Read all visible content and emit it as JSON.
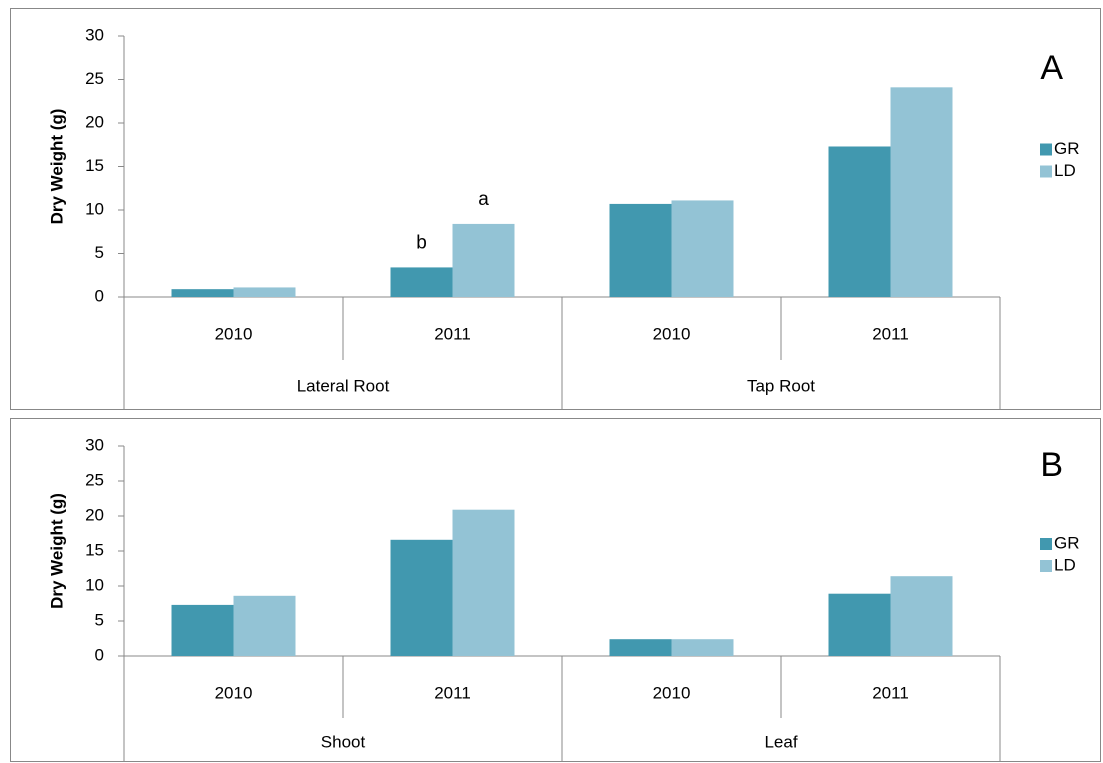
{
  "chart_data": [
    {
      "type": "bar",
      "panel_label": "A",
      "y_label": "Dry Weight (g)",
      "categories": [
        "2010",
        "2011",
        "2010",
        "2011"
      ],
      "groups": [
        "Lateral Root",
        "Tap Root"
      ],
      "series": [
        {
          "name": "GR",
          "color": "#4198af",
          "values": [
            0.9,
            3.4,
            10.7,
            17.3
          ],
          "annotations": [
            null,
            "b",
            null,
            null
          ]
        },
        {
          "name": "LD",
          "color": "#93c3d5",
          "values": [
            1.1,
            8.4,
            11.1,
            24.1
          ],
          "annotations": [
            null,
            "a",
            null,
            null
          ]
        }
      ],
      "ylim": [
        0,
        30
      ],
      "yticks": [
        0,
        5,
        10,
        15,
        20,
        25,
        30
      ],
      "legend": "right"
    },
    {
      "type": "bar",
      "panel_label": "B",
      "y_label": "Dry Weight (g)",
      "categories": [
        "2010",
        "2011",
        "2010",
        "2011"
      ],
      "groups": [
        "Shoot",
        "Leaf"
      ],
      "series": [
        {
          "name": "GR",
          "color": "#4198af",
          "values": [
            7.3,
            16.6,
            2.4,
            8.9
          ]
        },
        {
          "name": "LD",
          "color": "#93c3d5",
          "values": [
            8.6,
            20.9,
            2.4,
            11.4
          ]
        }
      ],
      "ylim": [
        0,
        30
      ],
      "yticks": [
        0,
        5,
        10,
        15,
        20,
        25,
        30
      ],
      "legend": "right"
    }
  ]
}
